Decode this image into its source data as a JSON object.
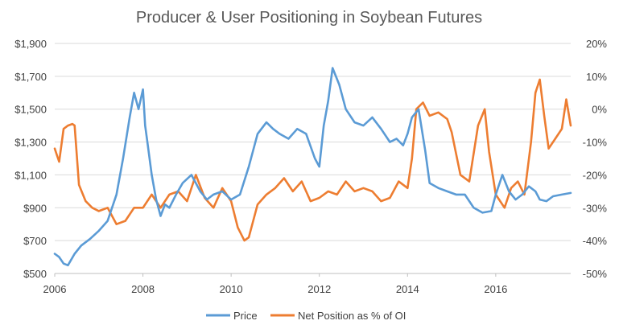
{
  "chart_data": {
    "type": "line",
    "title": "Producer & User Positioning in Soybean Futures",
    "xlabel": "",
    "ylabel_left": "",
    "ylabel_right": "",
    "x_ticks": [
      "2006",
      "2008",
      "2010",
      "2012",
      "2014",
      "2016"
    ],
    "xlim": [
      2006,
      2017.7
    ],
    "y_left_ticks": [
      "$500",
      "$700",
      "$900",
      "$1,100",
      "$1,300",
      "$1,500",
      "$1,700",
      "$1,900"
    ],
    "ylim_left": [
      500,
      1900
    ],
    "y_right_ticks": [
      "-50%",
      "-40%",
      "-30%",
      "-20%",
      "-10%",
      "0%",
      "10%",
      "20%"
    ],
    "ylim_right": [
      -50,
      20
    ],
    "grid": "horizontal",
    "legend_position": "bottom",
    "series": [
      {
        "name": "Price",
        "axis": "left",
        "color": "#5b9bd5",
        "x": [
          2006.0,
          2006.1,
          2006.2,
          2006.3,
          2006.45,
          2006.6,
          2006.8,
          2007.0,
          2007.2,
          2007.4,
          2007.55,
          2007.7,
          2007.8,
          2007.9,
          2008.0,
          2008.05,
          2008.1,
          2008.2,
          2008.3,
          2008.4,
          2008.5,
          2008.6,
          2008.75,
          2008.9,
          2009.1,
          2009.3,
          2009.45,
          2009.6,
          2009.8,
          2010.0,
          2010.2,
          2010.4,
          2010.6,
          2010.8,
          2010.95,
          2011.1,
          2011.3,
          2011.5,
          2011.7,
          2011.9,
          2012.0,
          2012.1,
          2012.2,
          2012.3,
          2012.45,
          2012.6,
          2012.8,
          2013.0,
          2013.2,
          2013.4,
          2013.6,
          2013.75,
          2013.9,
          2014.0,
          2014.1,
          2014.25,
          2014.4,
          2014.5,
          2014.7,
          2014.9,
          2015.1,
          2015.3,
          2015.5,
          2015.7,
          2015.9,
          2016.0,
          2016.15,
          2016.3,
          2016.45,
          2016.6,
          2016.75,
          2016.9,
          2017.0,
          2017.15,
          2017.3,
          2017.5,
          2017.7
        ],
        "values": [
          620,
          600,
          560,
          550,
          620,
          670,
          710,
          760,
          820,
          980,
          1200,
          1450,
          1600,
          1500,
          1620,
          1400,
          1300,
          1100,
          950,
          850,
          920,
          900,
          980,
          1050,
          1100,
          1000,
          950,
          980,
          1000,
          950,
          980,
          1150,
          1350,
          1420,
          1380,
          1350,
          1320,
          1380,
          1350,
          1200,
          1150,
          1400,
          1550,
          1750,
          1650,
          1500,
          1420,
          1400,
          1450,
          1380,
          1300,
          1320,
          1280,
          1350,
          1450,
          1500,
          1250,
          1050,
          1020,
          1000,
          980,
          980,
          900,
          870,
          880,
          980,
          1100,
          1000,
          950,
          980,
          1030,
          1000,
          950,
          940,
          970,
          980,
          990
        ]
      },
      {
        "name": "Net Position as % of OI",
        "axis": "right",
        "color": "#ed7d31",
        "x": [
          2006.0,
          2006.05,
          2006.1,
          2006.2,
          2006.3,
          2006.4,
          2006.45,
          2006.55,
          2006.7,
          2006.85,
          2007.0,
          2007.2,
          2007.4,
          2007.6,
          2007.8,
          2008.0,
          2008.2,
          2008.4,
          2008.6,
          2008.8,
          2009.0,
          2009.2,
          2009.4,
          2009.6,
          2009.8,
          2010.0,
          2010.15,
          2010.3,
          2010.4,
          2010.6,
          2010.8,
          2011.0,
          2011.2,
          2011.4,
          2011.6,
          2011.8,
          2012.0,
          2012.2,
          2012.4,
          2012.6,
          2012.8,
          2013.0,
          2013.2,
          2013.4,
          2013.6,
          2013.8,
          2014.0,
          2014.1,
          2014.2,
          2014.35,
          2014.5,
          2014.7,
          2014.9,
          2015.0,
          2015.2,
          2015.4,
          2015.6,
          2015.75,
          2015.85,
          2016.0,
          2016.2,
          2016.35,
          2016.5,
          2016.65,
          2016.8,
          2016.9,
          2017.0,
          2017.1,
          2017.2,
          2017.35,
          2017.5,
          2017.6,
          2017.7
        ],
        "values": [
          -12,
          -14,
          -16,
          -6,
          -5,
          -4.5,
          -5,
          -23,
          -28,
          -30,
          -31,
          -30,
          -35,
          -34,
          -30,
          -30,
          -26,
          -30,
          -26,
          -25,
          -28,
          -20,
          -27,
          -30,
          -24,
          -28,
          -36,
          -40,
          -39,
          -29,
          -26,
          -24,
          -21,
          -25,
          -22,
          -28,
          -27,
          -25,
          -26,
          -22,
          -25,
          -24,
          -25,
          -28,
          -27,
          -22,
          -24,
          -15,
          0,
          2,
          -2,
          -1,
          -3,
          -7,
          -20,
          -22,
          -5,
          0,
          -13,
          -26,
          -30,
          -24,
          -22,
          -26,
          -10,
          5,
          9,
          -2,
          -12,
          -9,
          -6,
          3,
          -5
        ]
      }
    ]
  }
}
